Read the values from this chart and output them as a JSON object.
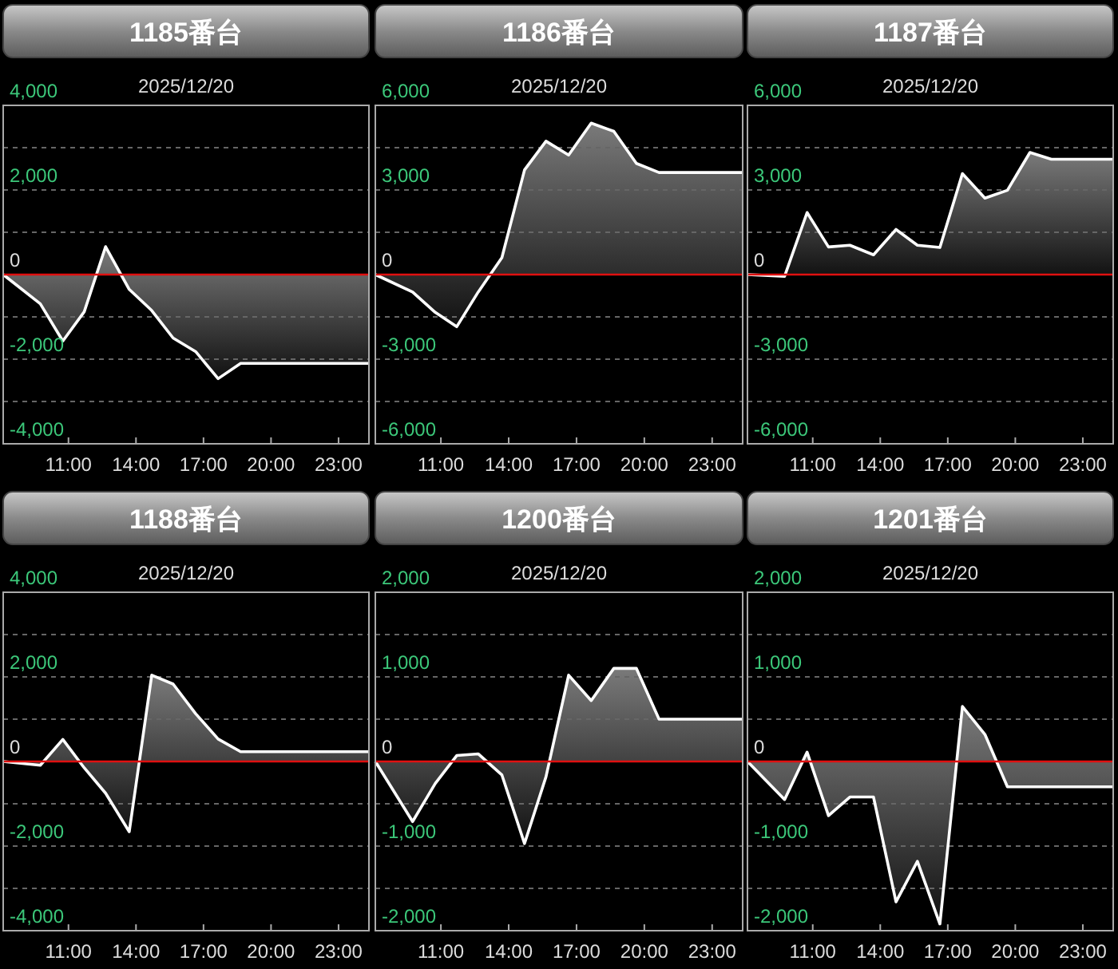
{
  "chart_data": [
    {
      "type": "area",
      "title": "1185番台",
      "subtitle": "2025/12/20",
      "x": [
        8.1,
        9.75,
        10.75,
        11.7,
        12.65,
        13.7,
        14.7,
        15.65,
        16.65,
        17.65,
        18.65,
        24.35
      ],
      "series": [
        {
          "color": "#ffffff",
          "values": [
            0,
            -690,
            -1570,
            -880,
            660,
            -350,
            -850,
            -1500,
            -1820,
            -2460,
            -2100,
            -2100
          ]
        }
      ],
      "xlim": [
        8.1,
        24.35
      ],
      "xticks": [
        {
          "value": 11,
          "label": "11:00"
        },
        {
          "value": 14,
          "label": "14:00"
        },
        {
          "value": 17,
          "label": "17:00"
        },
        {
          "value": 20,
          "label": "20:00"
        },
        {
          "value": 23,
          "label": "23:00"
        }
      ],
      "ylim": [
        -4000,
        4000
      ],
      "yticks": [
        {
          "value": 4000,
          "label": "4,000"
        },
        {
          "value": 3000,
          "label": null
        },
        {
          "value": 2000,
          "label": "2,000"
        },
        {
          "value": 1000,
          "label": null
        },
        {
          "value": 0,
          "label": "0"
        },
        {
          "value": -1000,
          "label": null
        },
        {
          "value": -2000,
          "label": "-2,000"
        },
        {
          "value": -3000,
          "label": null
        },
        {
          "value": -4000,
          "label": "-4,000"
        }
      ],
      "ref_lines": [
        {
          "axis": "y",
          "value": 0,
          "color": "#e01010"
        }
      ],
      "grid": "y"
    },
    {
      "type": "area",
      "title": "1186番台",
      "subtitle": "2025/12/20",
      "x": [
        8.1,
        9.75,
        10.75,
        11.7,
        12.65,
        13.7,
        14.7,
        15.65,
        16.65,
        17.65,
        18.65,
        19.65,
        20.65,
        24.35
      ],
      "series": [
        {
          "color": "#ffffff",
          "values": [
            0,
            -620,
            -1340,
            -1850,
            -620,
            600,
            3710,
            4730,
            4240,
            5370,
            5080,
            3940,
            3620,
            3620
          ]
        }
      ],
      "xlim": [
        8.1,
        24.35
      ],
      "xticks": [
        {
          "value": 11,
          "label": "11:00"
        },
        {
          "value": 14,
          "label": "14:00"
        },
        {
          "value": 17,
          "label": "17:00"
        },
        {
          "value": 20,
          "label": "20:00"
        },
        {
          "value": 23,
          "label": "23:00"
        }
      ],
      "ylim": [
        -6000,
        6000
      ],
      "yticks": [
        {
          "value": 6000,
          "label": "6,000"
        },
        {
          "value": 4500,
          "label": null
        },
        {
          "value": 3000,
          "label": "3,000"
        },
        {
          "value": 1500,
          "label": null
        },
        {
          "value": 0,
          "label": "0"
        },
        {
          "value": -1500,
          "label": null
        },
        {
          "value": -3000,
          "label": "-3,000"
        },
        {
          "value": -4500,
          "label": null
        },
        {
          "value": -6000,
          "label": "-6,000"
        }
      ],
      "ref_lines": [
        {
          "axis": "y",
          "value": 0,
          "color": "#e01010"
        }
      ],
      "grid": "y"
    },
    {
      "type": "area",
      "title": "1187番台",
      "subtitle": "2025/12/20",
      "x": [
        8.1,
        9.75,
        10.75,
        11.7,
        12.65,
        13.7,
        14.7,
        15.65,
        16.65,
        17.65,
        18.65,
        19.65,
        20.65,
        21.6,
        24.35
      ],
      "series": [
        {
          "color": "#ffffff",
          "values": [
            0,
            -60,
            2200,
            980,
            1040,
            700,
            1600,
            1040,
            960,
            3580,
            2710,
            2990,
            4330,
            4090,
            4090
          ]
        }
      ],
      "xlim": [
        8.1,
        24.35
      ],
      "xticks": [
        {
          "value": 11,
          "label": "11:00"
        },
        {
          "value": 14,
          "label": "14:00"
        },
        {
          "value": 17,
          "label": "17:00"
        },
        {
          "value": 20,
          "label": "20:00"
        },
        {
          "value": 23,
          "label": "23:00"
        }
      ],
      "ylim": [
        -6000,
        6000
      ],
      "yticks": [
        {
          "value": 6000,
          "label": "6,000"
        },
        {
          "value": 4500,
          "label": null
        },
        {
          "value": 3000,
          "label": "3,000"
        },
        {
          "value": 1500,
          "label": null
        },
        {
          "value": 0,
          "label": "0"
        },
        {
          "value": -1500,
          "label": null
        },
        {
          "value": -3000,
          "label": "-3,000"
        },
        {
          "value": -4500,
          "label": null
        },
        {
          "value": -6000,
          "label": "-6,000"
        }
      ],
      "ref_lines": [
        {
          "axis": "y",
          "value": 0,
          "color": "#e01010"
        }
      ],
      "grid": "y"
    },
    {
      "type": "area",
      "title": "1188番台",
      "subtitle": "2025/12/20",
      "x": [
        8.1,
        9.75,
        10.75,
        11.7,
        12.65,
        13.7,
        14.7,
        15.65,
        16.65,
        17.65,
        18.65,
        24.35
      ],
      "series": [
        {
          "color": "#ffffff",
          "values": [
            0,
            -90,
            520,
            -150,
            -750,
            -1660,
            2040,
            1830,
            1130,
            530,
            230,
            230
          ]
        }
      ],
      "xlim": [
        8.1,
        24.35
      ],
      "xticks": [
        {
          "value": 11,
          "label": "11:00"
        },
        {
          "value": 14,
          "label": "14:00"
        },
        {
          "value": 17,
          "label": "17:00"
        },
        {
          "value": 20,
          "label": "20:00"
        },
        {
          "value": 23,
          "label": "23:00"
        }
      ],
      "ylim": [
        -4000,
        4000
      ],
      "yticks": [
        {
          "value": 4000,
          "label": "4,000"
        },
        {
          "value": 3000,
          "label": null
        },
        {
          "value": 2000,
          "label": "2,000"
        },
        {
          "value": 1000,
          "label": null
        },
        {
          "value": 0,
          "label": "0"
        },
        {
          "value": -1000,
          "label": null
        },
        {
          "value": -2000,
          "label": "-2,000"
        },
        {
          "value": -3000,
          "label": null
        },
        {
          "value": -4000,
          "label": "-4,000"
        }
      ],
      "ref_lines": [
        {
          "axis": "y",
          "value": 0,
          "color": "#e01010"
        }
      ],
      "grid": "y"
    },
    {
      "type": "area",
      "title": "1200番台",
      "subtitle": "2025/12/20",
      "x": [
        8.1,
        9.75,
        10.75,
        11.7,
        12.65,
        13.7,
        14.7,
        15.65,
        16.65,
        17.65,
        18.65,
        19.65,
        20.65,
        24.35
      ],
      "series": [
        {
          "color": "#ffffff",
          "values": [
            0,
            -710,
            -260,
            70,
            90,
            -160,
            -970,
            -180,
            1020,
            720,
            1100,
            1100,
            500,
            500
          ]
        }
      ],
      "xlim": [
        8.1,
        24.35
      ],
      "xticks": [
        {
          "value": 11,
          "label": "11:00"
        },
        {
          "value": 14,
          "label": "14:00"
        },
        {
          "value": 17,
          "label": "17:00"
        },
        {
          "value": 20,
          "label": "20:00"
        },
        {
          "value": 23,
          "label": "23:00"
        }
      ],
      "ylim": [
        -2000,
        2000
      ],
      "yticks": [
        {
          "value": 2000,
          "label": "2,000"
        },
        {
          "value": 1500,
          "label": null
        },
        {
          "value": 1000,
          "label": "1,000"
        },
        {
          "value": 500,
          "label": null
        },
        {
          "value": 0,
          "label": "0"
        },
        {
          "value": -500,
          "label": null
        },
        {
          "value": -1000,
          "label": "-1,000"
        },
        {
          "value": -1500,
          "label": null
        },
        {
          "value": -2000,
          "label": "-2,000"
        }
      ],
      "ref_lines": [
        {
          "axis": "y",
          "value": 0,
          "color": "#e01010"
        }
      ],
      "grid": "y"
    },
    {
      "type": "area",
      "title": "1201番台",
      "subtitle": "2025/12/20",
      "x": [
        8.1,
        9.75,
        10.75,
        11.7,
        12.65,
        13.7,
        14.7,
        15.65,
        16.65,
        17.65,
        18.65,
        19.65,
        24.35
      ],
      "series": [
        {
          "color": "#ffffff",
          "values": [
            0,
            -450,
            110,
            -640,
            -420,
            -420,
            -1660,
            -1180,
            -1920,
            650,
            320,
            -300,
            -300
          ]
        }
      ],
      "xlim": [
        8.1,
        24.35
      ],
      "xticks": [
        {
          "value": 11,
          "label": "11:00"
        },
        {
          "value": 14,
          "label": "14:00"
        },
        {
          "value": 17,
          "label": "17:00"
        },
        {
          "value": 20,
          "label": "20:00"
        },
        {
          "value": 23,
          "label": "23:00"
        }
      ],
      "ylim": [
        -2000,
        2000
      ],
      "yticks": [
        {
          "value": 2000,
          "label": "2,000"
        },
        {
          "value": 1500,
          "label": null
        },
        {
          "value": 1000,
          "label": "1,000"
        },
        {
          "value": 500,
          "label": null
        },
        {
          "value": 0,
          "label": "0"
        },
        {
          "value": -500,
          "label": null
        },
        {
          "value": -1000,
          "label": "-1,000"
        },
        {
          "value": -1500,
          "label": null
        },
        {
          "value": -2000,
          "label": "-2,000"
        }
      ],
      "ref_lines": [
        {
          "axis": "y",
          "value": 0,
          "color": "#e01010"
        }
      ],
      "grid": "y"
    }
  ]
}
